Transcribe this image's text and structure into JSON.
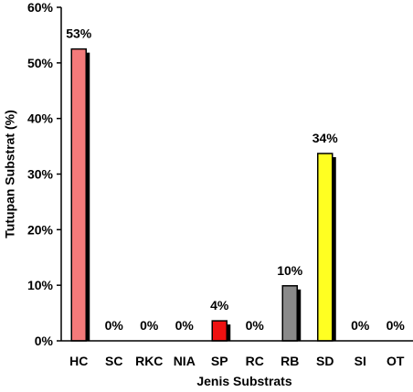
{
  "chart_data": {
    "type": "bar",
    "title": "",
    "xlabel": "Jenis Substrats",
    "ylabel": "Tutupan Substrat (%)",
    "ylim": [
      0,
      60
    ],
    "yticks": [
      0,
      10,
      20,
      30,
      40,
      50,
      60
    ],
    "ytick_labels": [
      "0%",
      "10%",
      "20%",
      "30%",
      "40%",
      "50%",
      "60%"
    ],
    "grid": false,
    "legend": "none",
    "categories": [
      "HC",
      "SC",
      "RKC",
      "NIA",
      "SP",
      "RC",
      "RB",
      "SD",
      "SI",
      "OT"
    ],
    "values": [
      52.5,
      0,
      0,
      0,
      3.6,
      0,
      9.9,
      33.7,
      0,
      0
    ],
    "data_labels": [
      "53%",
      "0%",
      "0%",
      "0%",
      "4%",
      "0%",
      "10%",
      "34%",
      "0%",
      "0%"
    ],
    "colors": [
      "#f47a7a",
      "#ffffff",
      "#ffffff",
      "#ffffff",
      "#ee1111",
      "#ffffff",
      "#8a8a8a",
      "#ffff22",
      "#ffffff",
      "#ffffff"
    ],
    "shadow_color": "#000000"
  }
}
